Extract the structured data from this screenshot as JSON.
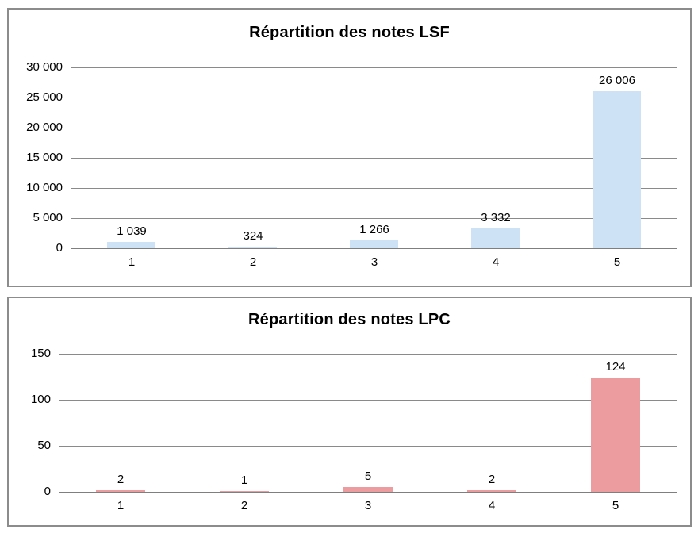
{
  "chart_data": [
    {
      "type": "bar",
      "title": "Répartition des notes LSF",
      "categories": [
        "1",
        "2",
        "3",
        "4",
        "5"
      ],
      "values": [
        1039,
        324,
        1266,
        3332,
        26006
      ],
      "data_labels": [
        "1 039",
        "324",
        "1 266",
        "3 332",
        "26 006"
      ],
      "xlabel": "",
      "ylabel": "",
      "ylim": [
        0,
        30000
      ],
      "ytick_values": [
        0,
        5000,
        10000,
        15000,
        20000,
        25000,
        30000
      ],
      "ytick_labels": [
        "0",
        "5 000",
        "10 000",
        "15 000",
        "20 000",
        "25 000",
        "30 000"
      ],
      "grid": true,
      "legend": false,
      "bar_color": "#cde3f5"
    },
    {
      "type": "bar",
      "title": "Répartition des notes LPC",
      "categories": [
        "1",
        "2",
        "3",
        "4",
        "5"
      ],
      "values": [
        2,
        1,
        5,
        2,
        124
      ],
      "data_labels": [
        "2",
        "1",
        "5",
        "2",
        "124"
      ],
      "xlabel": "",
      "ylabel": "",
      "ylim": [
        0,
        150
      ],
      "ytick_values": [
        0,
        50,
        100,
        150
      ],
      "ytick_labels": [
        "0",
        "50",
        "100",
        "150"
      ],
      "grid": true,
      "legend": false,
      "bar_color": "#ec9b9e"
    }
  ],
  "style": {
    "grid_color": "#8a8a8a",
    "axis_color": "#7f7f7f",
    "panel_border_color": "#8c8c8c",
    "text_color": "#000000",
    "background": "#ffffff"
  }
}
